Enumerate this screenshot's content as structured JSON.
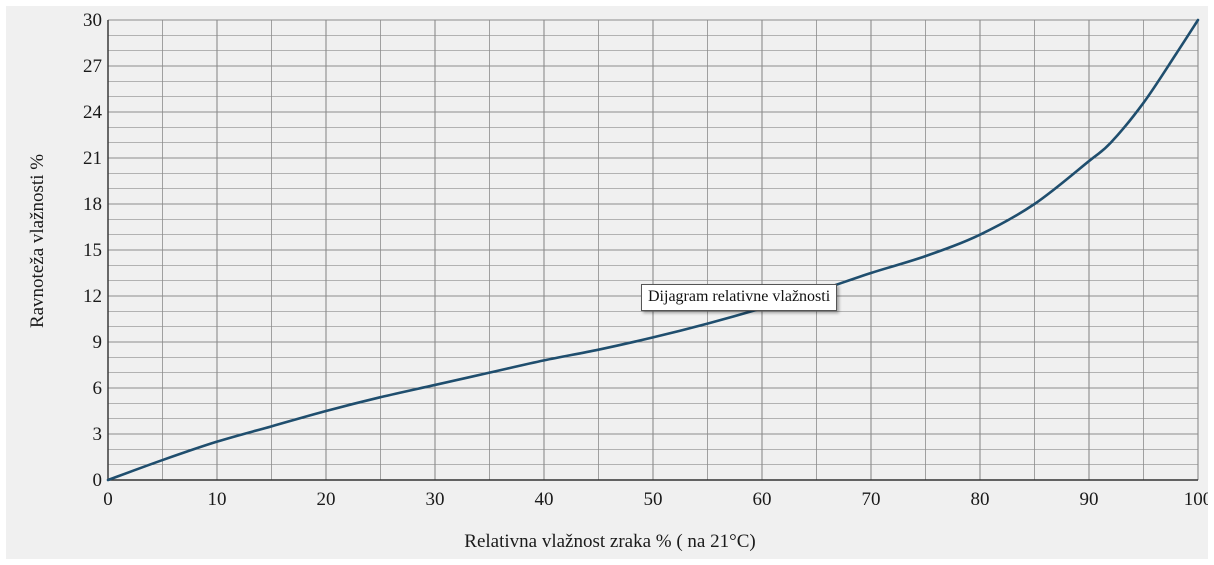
{
  "chart_data": {
    "type": "line",
    "xlabel": "Relativna vlažnost zraka % ( na 21°C)",
    "ylabel": "Ravnoteža vlažnosti %",
    "xlim": [
      0,
      100
    ],
    "ylim": [
      0,
      30
    ],
    "x_ticks": [
      0,
      10,
      20,
      30,
      40,
      50,
      60,
      70,
      80,
      90,
      100
    ],
    "y_ticks": [
      0,
      3,
      6,
      9,
      12,
      15,
      18,
      21,
      24,
      27,
      30
    ],
    "x_tick_labels": [
      "0",
      "10",
      "20",
      "30",
      "40",
      "50",
      "60",
      "70",
      "80",
      "90",
      "100"
    ],
    "y_tick_labels": [
      "0",
      "3",
      "6",
      "9",
      "12",
      "15",
      "18",
      "21",
      "24",
      "27",
      "30"
    ],
    "grid": true,
    "grid_minor_x_step": 5,
    "grid_minor_y_step": 1,
    "colors": {
      "line": "#1f4e6e",
      "grid": "#8c8c8c",
      "background": "#f0f0f0"
    },
    "series": [
      {
        "x": [
          0,
          5,
          10,
          15,
          20,
          25,
          30,
          35,
          40,
          45,
          50,
          55,
          60,
          65,
          70,
          75,
          80,
          85,
          90,
          92,
          95,
          98,
          100
        ],
        "y": [
          0,
          1.3,
          2.5,
          3.5,
          4.5,
          5.4,
          6.2,
          7.0,
          7.8,
          8.5,
          9.3,
          10.2,
          11.2,
          12.3,
          13.5,
          14.6,
          16.0,
          18.0,
          20.8,
          22.0,
          24.6,
          27.8,
          30.0
        ]
      }
    ],
    "annotation": "Dijagram relativne vlažnosti"
  }
}
